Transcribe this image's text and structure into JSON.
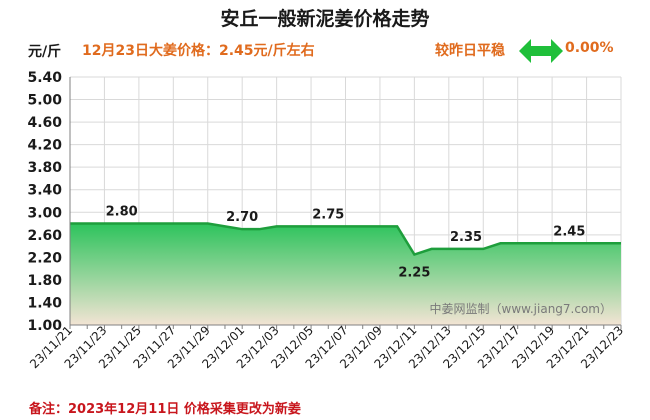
{
  "header": {
    "title": "安丘一般新泥姜价格走势",
    "unit": "元/斤",
    "headline": "12月23日大姜价格：2.45元/斤左右",
    "compare_label": "较昨日平稳",
    "compare_value": "0.00%",
    "arrow_icon": "double-arrow-icon",
    "accent_color": "#e06b1e",
    "arrow_color": "#1fbf3a"
  },
  "footer": {
    "note": "备注：2023年12月11日 价格采集更改为新姜",
    "note_color": "#c8161d"
  },
  "chart_data": {
    "type": "area",
    "title": "安丘一般新泥姜价格走势",
    "ylabel": "元/斤",
    "xlabel": "",
    "ylim": [
      1.0,
      5.4
    ],
    "yticks": [
      "1.00",
      "1.40",
      "1.80",
      "2.20",
      "2.60",
      "3.00",
      "3.40",
      "3.80",
      "4.20",
      "4.60",
      "5.00",
      "5.40"
    ],
    "x": [
      "23/11/21",
      "23/11/22",
      "23/11/23",
      "23/11/24",
      "23/11/25",
      "23/11/26",
      "23/11/27",
      "23/11/28",
      "23/11/29",
      "23/11/30",
      "23/12/01",
      "23/12/02",
      "23/12/03",
      "23/12/04",
      "23/12/05",
      "23/12/06",
      "23/12/07",
      "23/12/08",
      "23/12/09",
      "23/12/10",
      "23/12/11",
      "23/12/12",
      "23/12/13",
      "23/12/14",
      "23/12/15",
      "23/12/16",
      "23/12/17",
      "23/12/18",
      "23/12/19",
      "23/12/20",
      "23/12/21",
      "23/12/22",
      "23/12/23"
    ],
    "xtick_labels": [
      "23/11/21",
      "23/11/23",
      "23/11/25",
      "23/11/27",
      "23/11/29",
      "23/12/01",
      "23/12/03",
      "23/12/05",
      "23/12/07",
      "23/12/09",
      "23/12/11",
      "23/12/13",
      "23/12/15",
      "23/12/17",
      "23/12/19",
      "23/12/21",
      "23/12/23"
    ],
    "values": [
      2.8,
      2.8,
      2.8,
      2.8,
      2.8,
      2.8,
      2.8,
      2.8,
      2.8,
      2.75,
      2.7,
      2.7,
      2.75,
      2.75,
      2.75,
      2.75,
      2.75,
      2.75,
      2.75,
      2.75,
      2.25,
      2.35,
      2.35,
      2.35,
      2.35,
      2.45,
      2.45,
      2.45,
      2.45,
      2.45,
      2.45,
      2.45,
      2.45
    ],
    "data_labels": [
      {
        "index": 3,
        "text": "2.80"
      },
      {
        "index": 10,
        "text": "2.70"
      },
      {
        "index": 15,
        "text": "2.75"
      },
      {
        "index": 20,
        "text": "2.25"
      },
      {
        "index": 23,
        "text": "2.35"
      },
      {
        "index": 29,
        "text": "2.45"
      }
    ],
    "watermark": "中姜网监制（www.jiang7.com）",
    "grid": true,
    "line_color": "#1e9e3c",
    "fill_top_color": "#2dc35c",
    "fill_bottom_color": "#f3e4d4"
  }
}
